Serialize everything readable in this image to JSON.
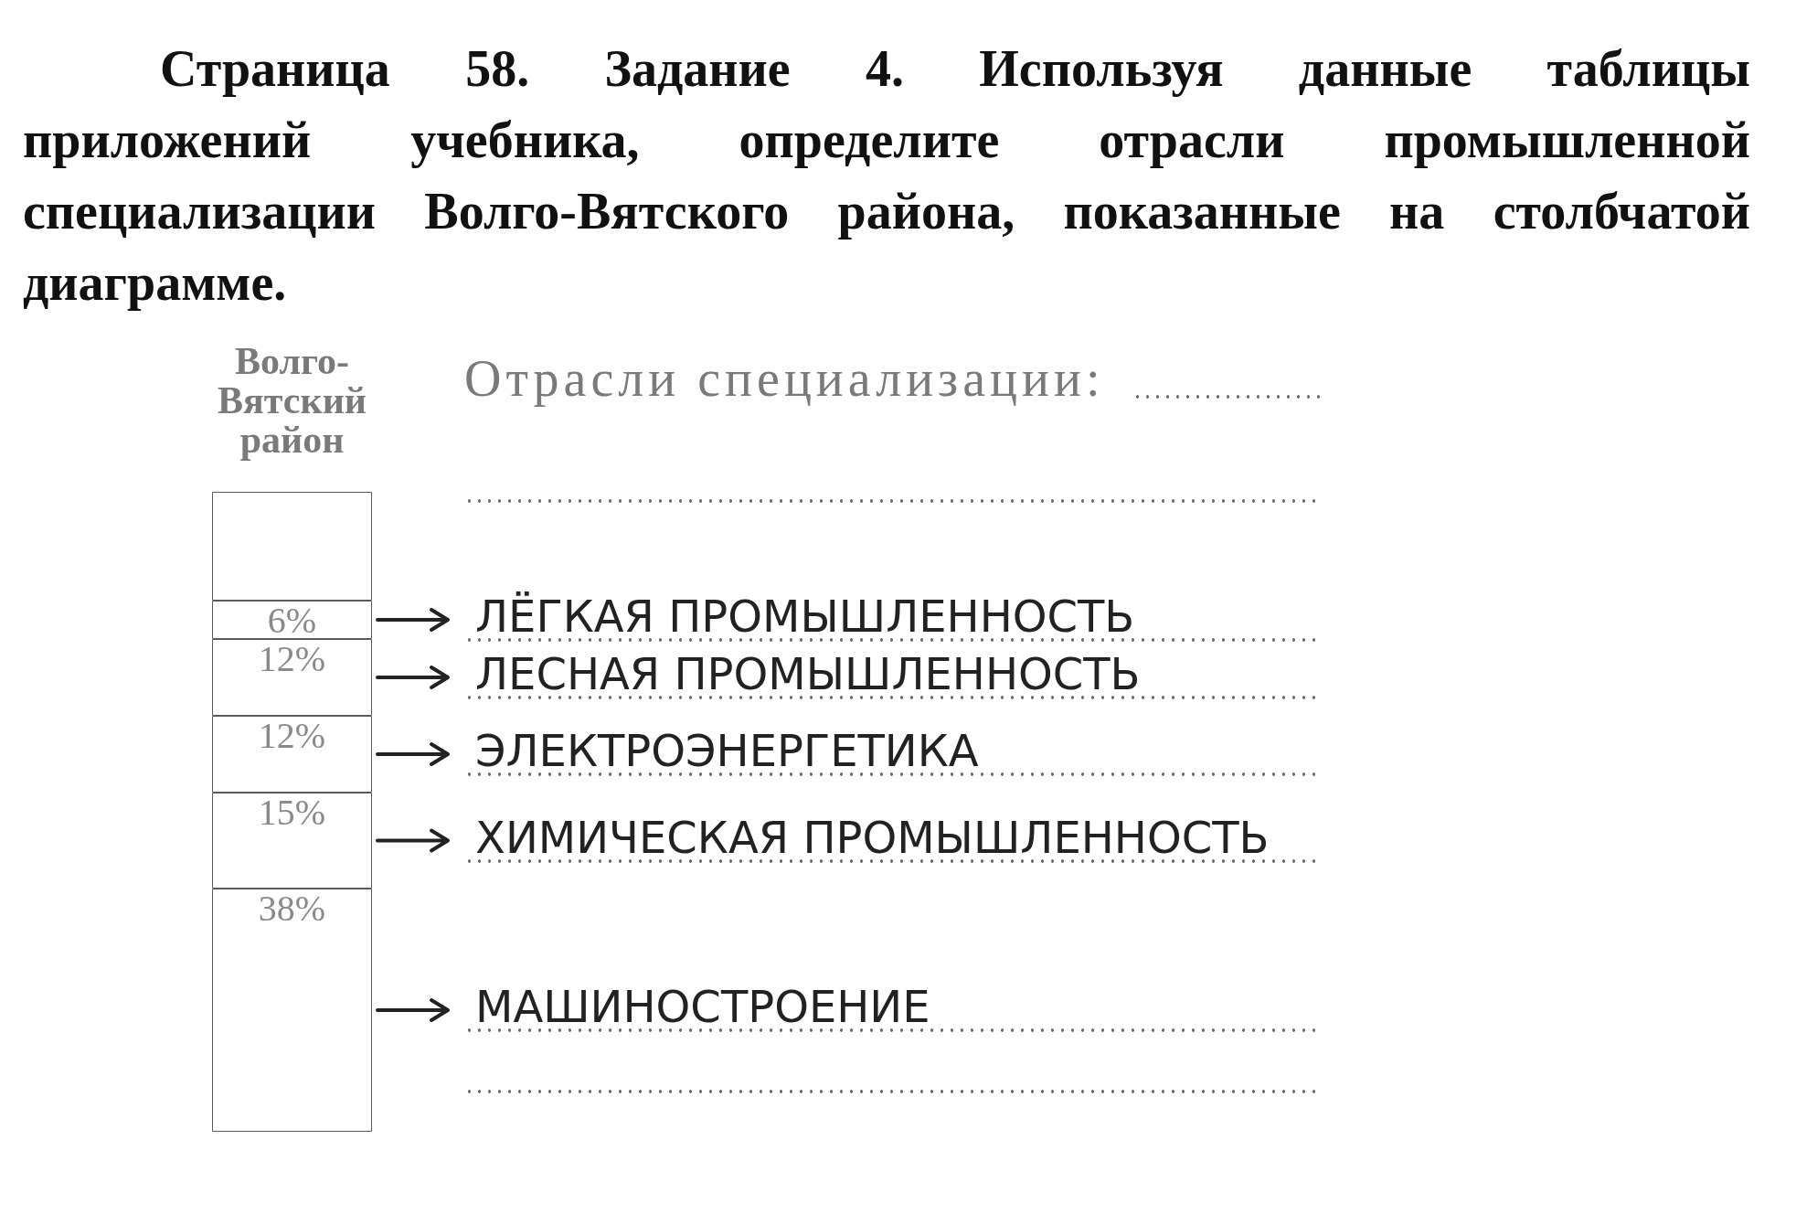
{
  "chart_data": {
    "type": "bar",
    "title": "Страница 58. Задание 4. Используя данные таблицы приложений учебника, определите отрасли промышленной специализации Волго-Вятского района, показанные на столбчатой диаграмме.",
    "annotations": [
      "Отрасли специализации:"
    ],
    "categories": [
      "Волго-Вятский район"
    ],
    "stacked": true,
    "tick_labels": "x",
    "series": [
      {
        "name": "МАШИНОСТРОЕНИЕ",
        "color": "#ffffff",
        "values": [
          38
        ],
        "value_labels": [
          "38%"
        ]
      },
      {
        "name": "ХИМИЧЕСКАЯ ПРОМЫШЛЕННОСТЬ",
        "color": "#ffffff",
        "values": [
          15
        ],
        "value_labels": [
          "15%"
        ]
      },
      {
        "name": "ЭЛЕКТРОЭНЕРГЕТИКА",
        "color": "#ffffff",
        "values": [
          12
        ],
        "value_labels": [
          "12%"
        ]
      },
      {
        "name": "ЛЕСНАЯ ПРОМЫШЛЕННОСТЬ",
        "color": "#ffffff",
        "values": [
          12
        ],
        "value_labels": [
          "12%"
        ]
      },
      {
        "name": "ЛЁГКАЯ ПРОМЫШЛЕННОСТЬ",
        "color": "#ffffff",
        "values": [
          6
        ],
        "value_labels": [
          "6%"
        ]
      },
      {
        "color": "#ffffff",
        "values": [
          17
        ],
        "value_labels": [
          null
        ]
      }
    ]
  }
}
